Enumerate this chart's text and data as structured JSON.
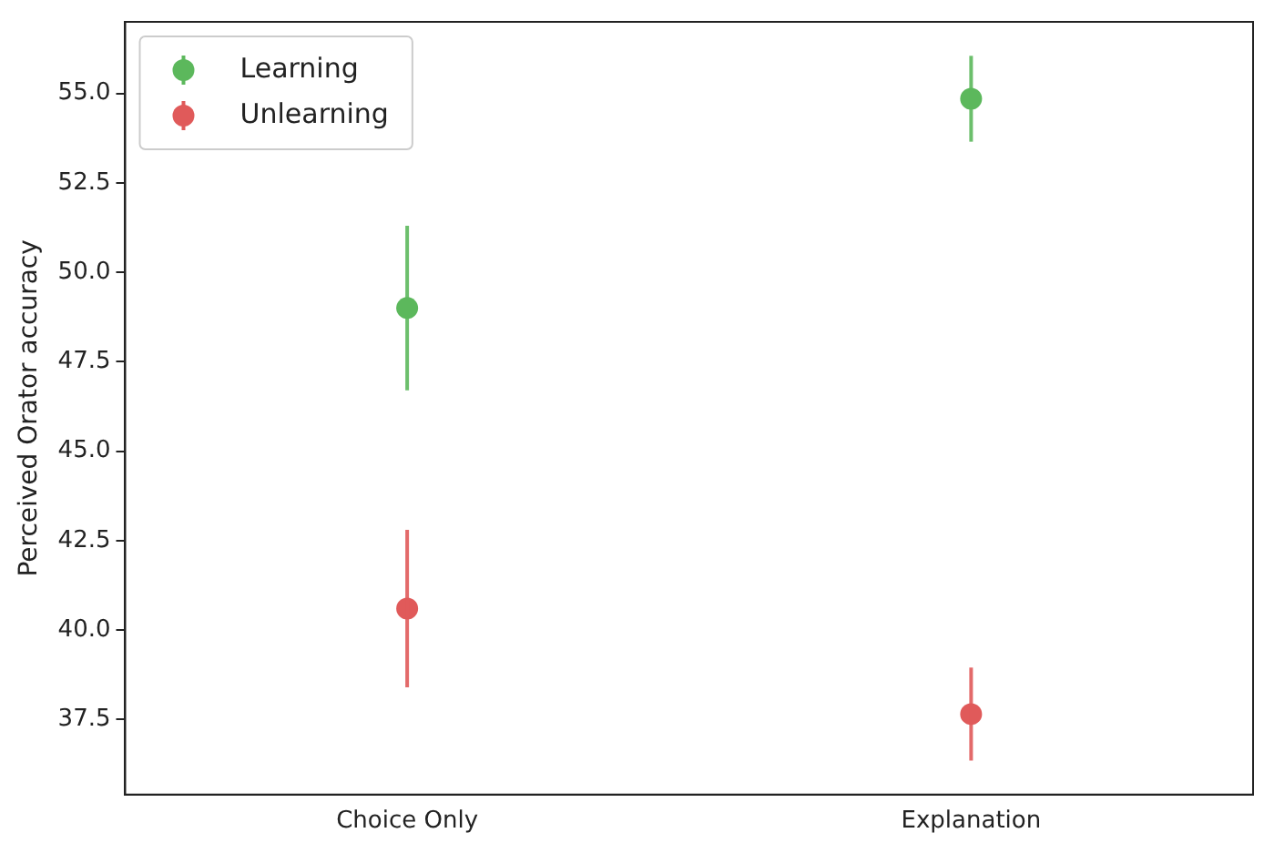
{
  "chart_data": {
    "type": "scatter",
    "ylabel": "Perceived Orator accuracy",
    "categories": [
      "Choice Only",
      "Explanation"
    ],
    "series": [
      {
        "name": "Learning",
        "color": "#5cb85c",
        "values": [
          49.0,
          54.85
        ],
        "errors": [
          2.3,
          1.2
        ]
      },
      {
        "name": "Unlearning",
        "color": "#e05a5a",
        "values": [
          40.6,
          37.65
        ],
        "errors": [
          2.2,
          1.3
        ]
      }
    ],
    "ylim": [
      35.4,
      57.0
    ],
    "yticks": [
      {
        "value": 37.5,
        "label": "37.5"
      },
      {
        "value": 40,
        "label": "40.0"
      },
      {
        "value": 42.5,
        "label": "42.5"
      },
      {
        "value": 45,
        "label": "45.0"
      },
      {
        "value": 47.5,
        "label": "47.5"
      },
      {
        "value": 50,
        "label": "50.0"
      },
      {
        "value": 52.5,
        "label": "52.5"
      },
      {
        "value": 55,
        "label": "55.0"
      }
    ],
    "grid": false,
    "legend": "top left",
    "marker": "circle"
  }
}
